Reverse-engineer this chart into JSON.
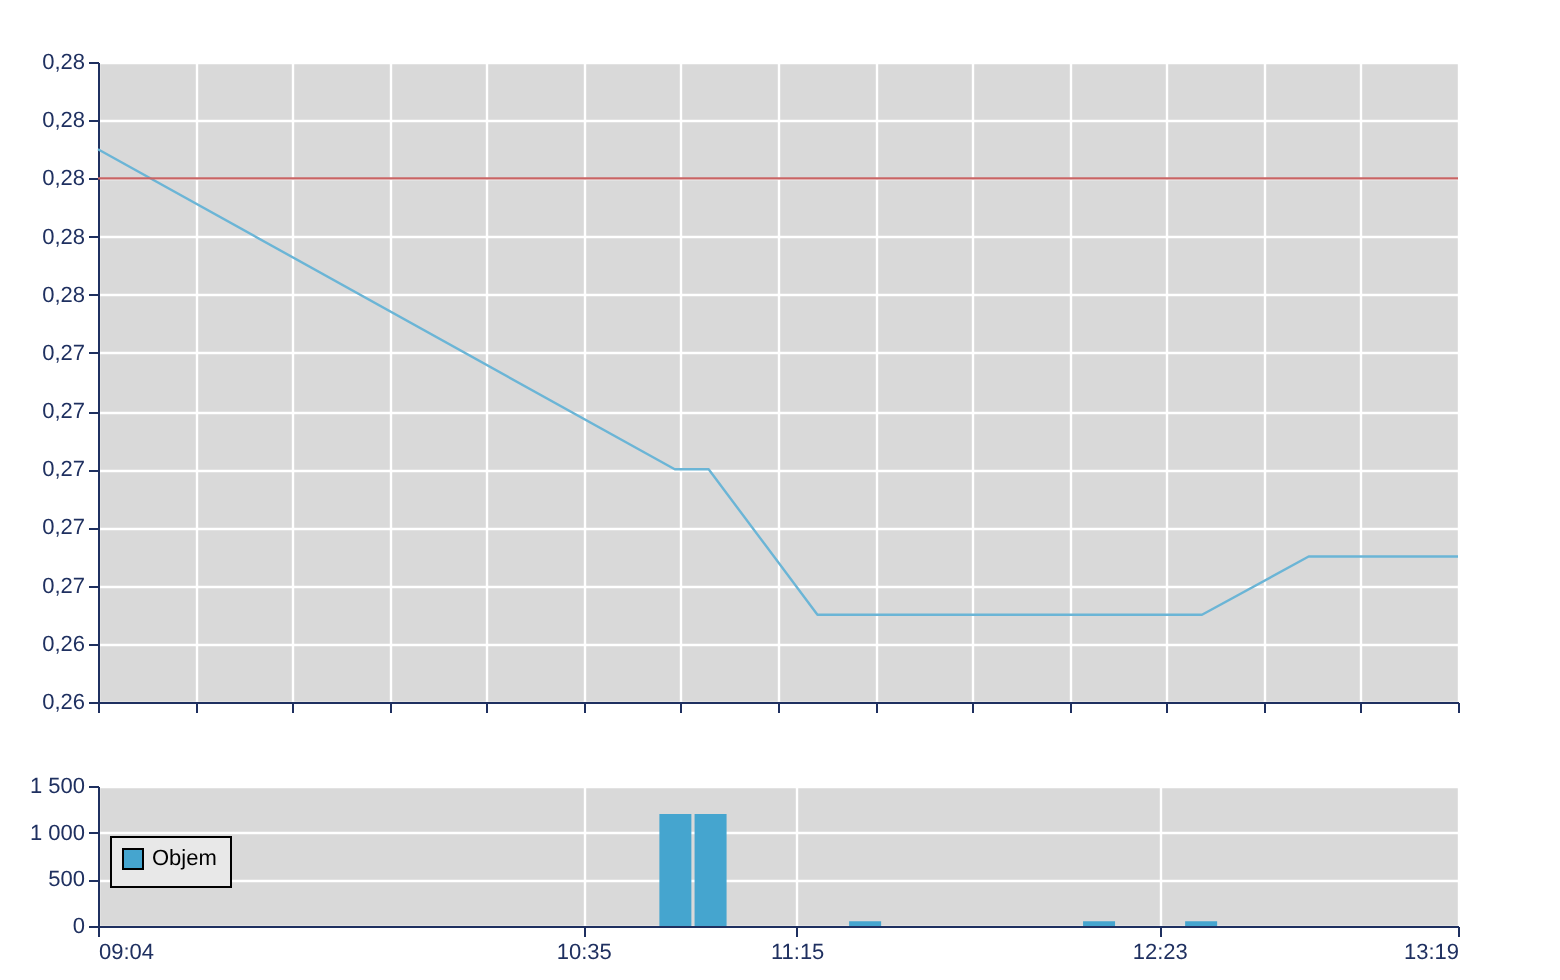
{
  "chart_data": [
    {
      "type": "line",
      "x": [
        9.0667,
        10.869,
        10.975,
        11.315,
        12.5167,
        12.85,
        13.3167
      ],
      "series": [
        {
          "color": "#6bb5d6",
          "values": [
            0.281,
            0.27,
            0.27,
            0.265,
            0.265,
            0.267,
            0.267
          ]
        }
      ],
      "xlim": [
        9.0667,
        13.3167
      ],
      "xticks": [
        {
          "value": 9.0667,
          "label": null
        },
        {
          "value": 9.3702,
          "label": null
        },
        {
          "value": 9.6738,
          "label": null
        },
        {
          "value": 9.9774,
          "label": null
        },
        {
          "value": 10.2809,
          "label": null
        },
        {
          "value": 10.5845,
          "label": null
        },
        {
          "value": 10.8881,
          "label": null
        },
        {
          "value": 11.1917,
          "label": null
        },
        {
          "value": 11.4952,
          "label": null
        },
        {
          "value": 11.7988,
          "label": null
        },
        {
          "value": 12.1024,
          "label": null
        },
        {
          "value": 12.4059,
          "label": null
        },
        {
          "value": 12.7095,
          "label": null
        },
        {
          "value": 13.0131,
          "label": null
        },
        {
          "value": 13.3167,
          "label": null
        }
      ],
      "ylim": [
        0.262,
        0.284
      ],
      "yticks": [
        {
          "value": 0.262,
          "label": "0,26"
        },
        {
          "value": 0.264,
          "label": "0,26"
        },
        {
          "value": 0.266,
          "label": "0,27"
        },
        {
          "value": 0.268,
          "label": "0,27"
        },
        {
          "value": 0.27,
          "label": "0,27"
        },
        {
          "value": 0.272,
          "label": "0,27"
        },
        {
          "value": 0.274,
          "label": "0,27"
        },
        {
          "value": 0.276,
          "label": "0,28"
        },
        {
          "value": 0.278,
          "label": "0,28"
        },
        {
          "value": 0.28,
          "label": "0,28"
        },
        {
          "value": 0.282,
          "label": "0,28"
        },
        {
          "value": 0.284,
          "label": "0,28"
        }
      ],
      "ref_lines": [
        {
          "axis": "y",
          "value": 0.28,
          "color": "#c86464"
        }
      ],
      "grid": true,
      "tick_labels": "y"
    },
    {
      "type": "bar",
      "x": [
        10.871,
        10.981,
        11.464,
        12.195,
        12.514
      ],
      "series": [
        {
          "name": "Objem",
          "color": "#45a5cf",
          "values": [
            1200,
            1200,
            50,
            50,
            50
          ]
        }
      ],
      "xlim": [
        9.0667,
        13.3167
      ],
      "xticks": [
        {
          "value": 9.0667,
          "label": "09:04"
        },
        {
          "value": 10.5833,
          "label": "10:35"
        },
        {
          "value": 11.25,
          "label": "11:15"
        },
        {
          "value": 12.3833,
          "label": "12:23"
        },
        {
          "value": 13.3167,
          "label": "13:19"
        }
      ],
      "ylim": [
        0,
        1500
      ],
      "yticks": [
        0,
        500,
        {
          "value": 1000,
          "label": "1 000"
        },
        {
          "value": 1500,
          "label": "1 500"
        }
      ],
      "grid": true,
      "legend": "left"
    }
  ]
}
